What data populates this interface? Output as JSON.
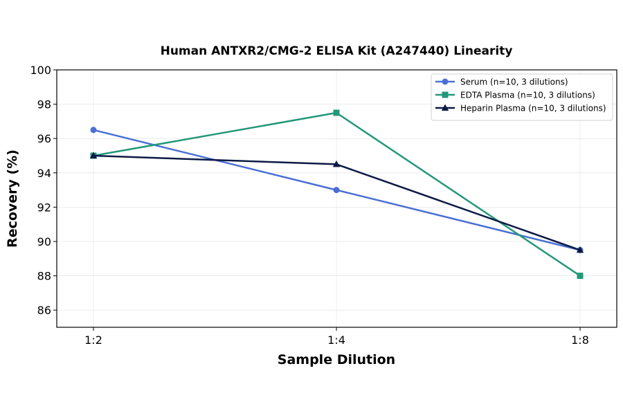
{
  "chart_data": {
    "type": "line",
    "title": "Human ANTXR2/CMG-2 ELISA Kit (A247440) Linearity",
    "xlabel": "Sample Dilution",
    "ylabel": "Recovery (%)",
    "categories": [
      "1:2",
      "1:4",
      "1:8"
    ],
    "ylim": [
      85,
      100
    ],
    "yticks": [
      86,
      88,
      90,
      92,
      94,
      96,
      98,
      100
    ],
    "grid": true,
    "legend_position": "top-right",
    "series": [
      {
        "name": "Serum (n=10, 3 dilutions)",
        "values": [
          96.5,
          93.0,
          89.5
        ],
        "color": "#4a6fd4",
        "marker": "circle"
      },
      {
        "name": "EDTA Plasma (n=10, 3 dilutions)",
        "values": [
          95.0,
          97.5,
          88.0
        ],
        "color": "#23977a",
        "marker": "square"
      },
      {
        "name": "Heparin Plasma (n=10, 3 dilutions)",
        "values": [
          95.0,
          94.5,
          89.5
        ],
        "color": "#0c1a45",
        "marker": "triangle"
      }
    ]
  }
}
